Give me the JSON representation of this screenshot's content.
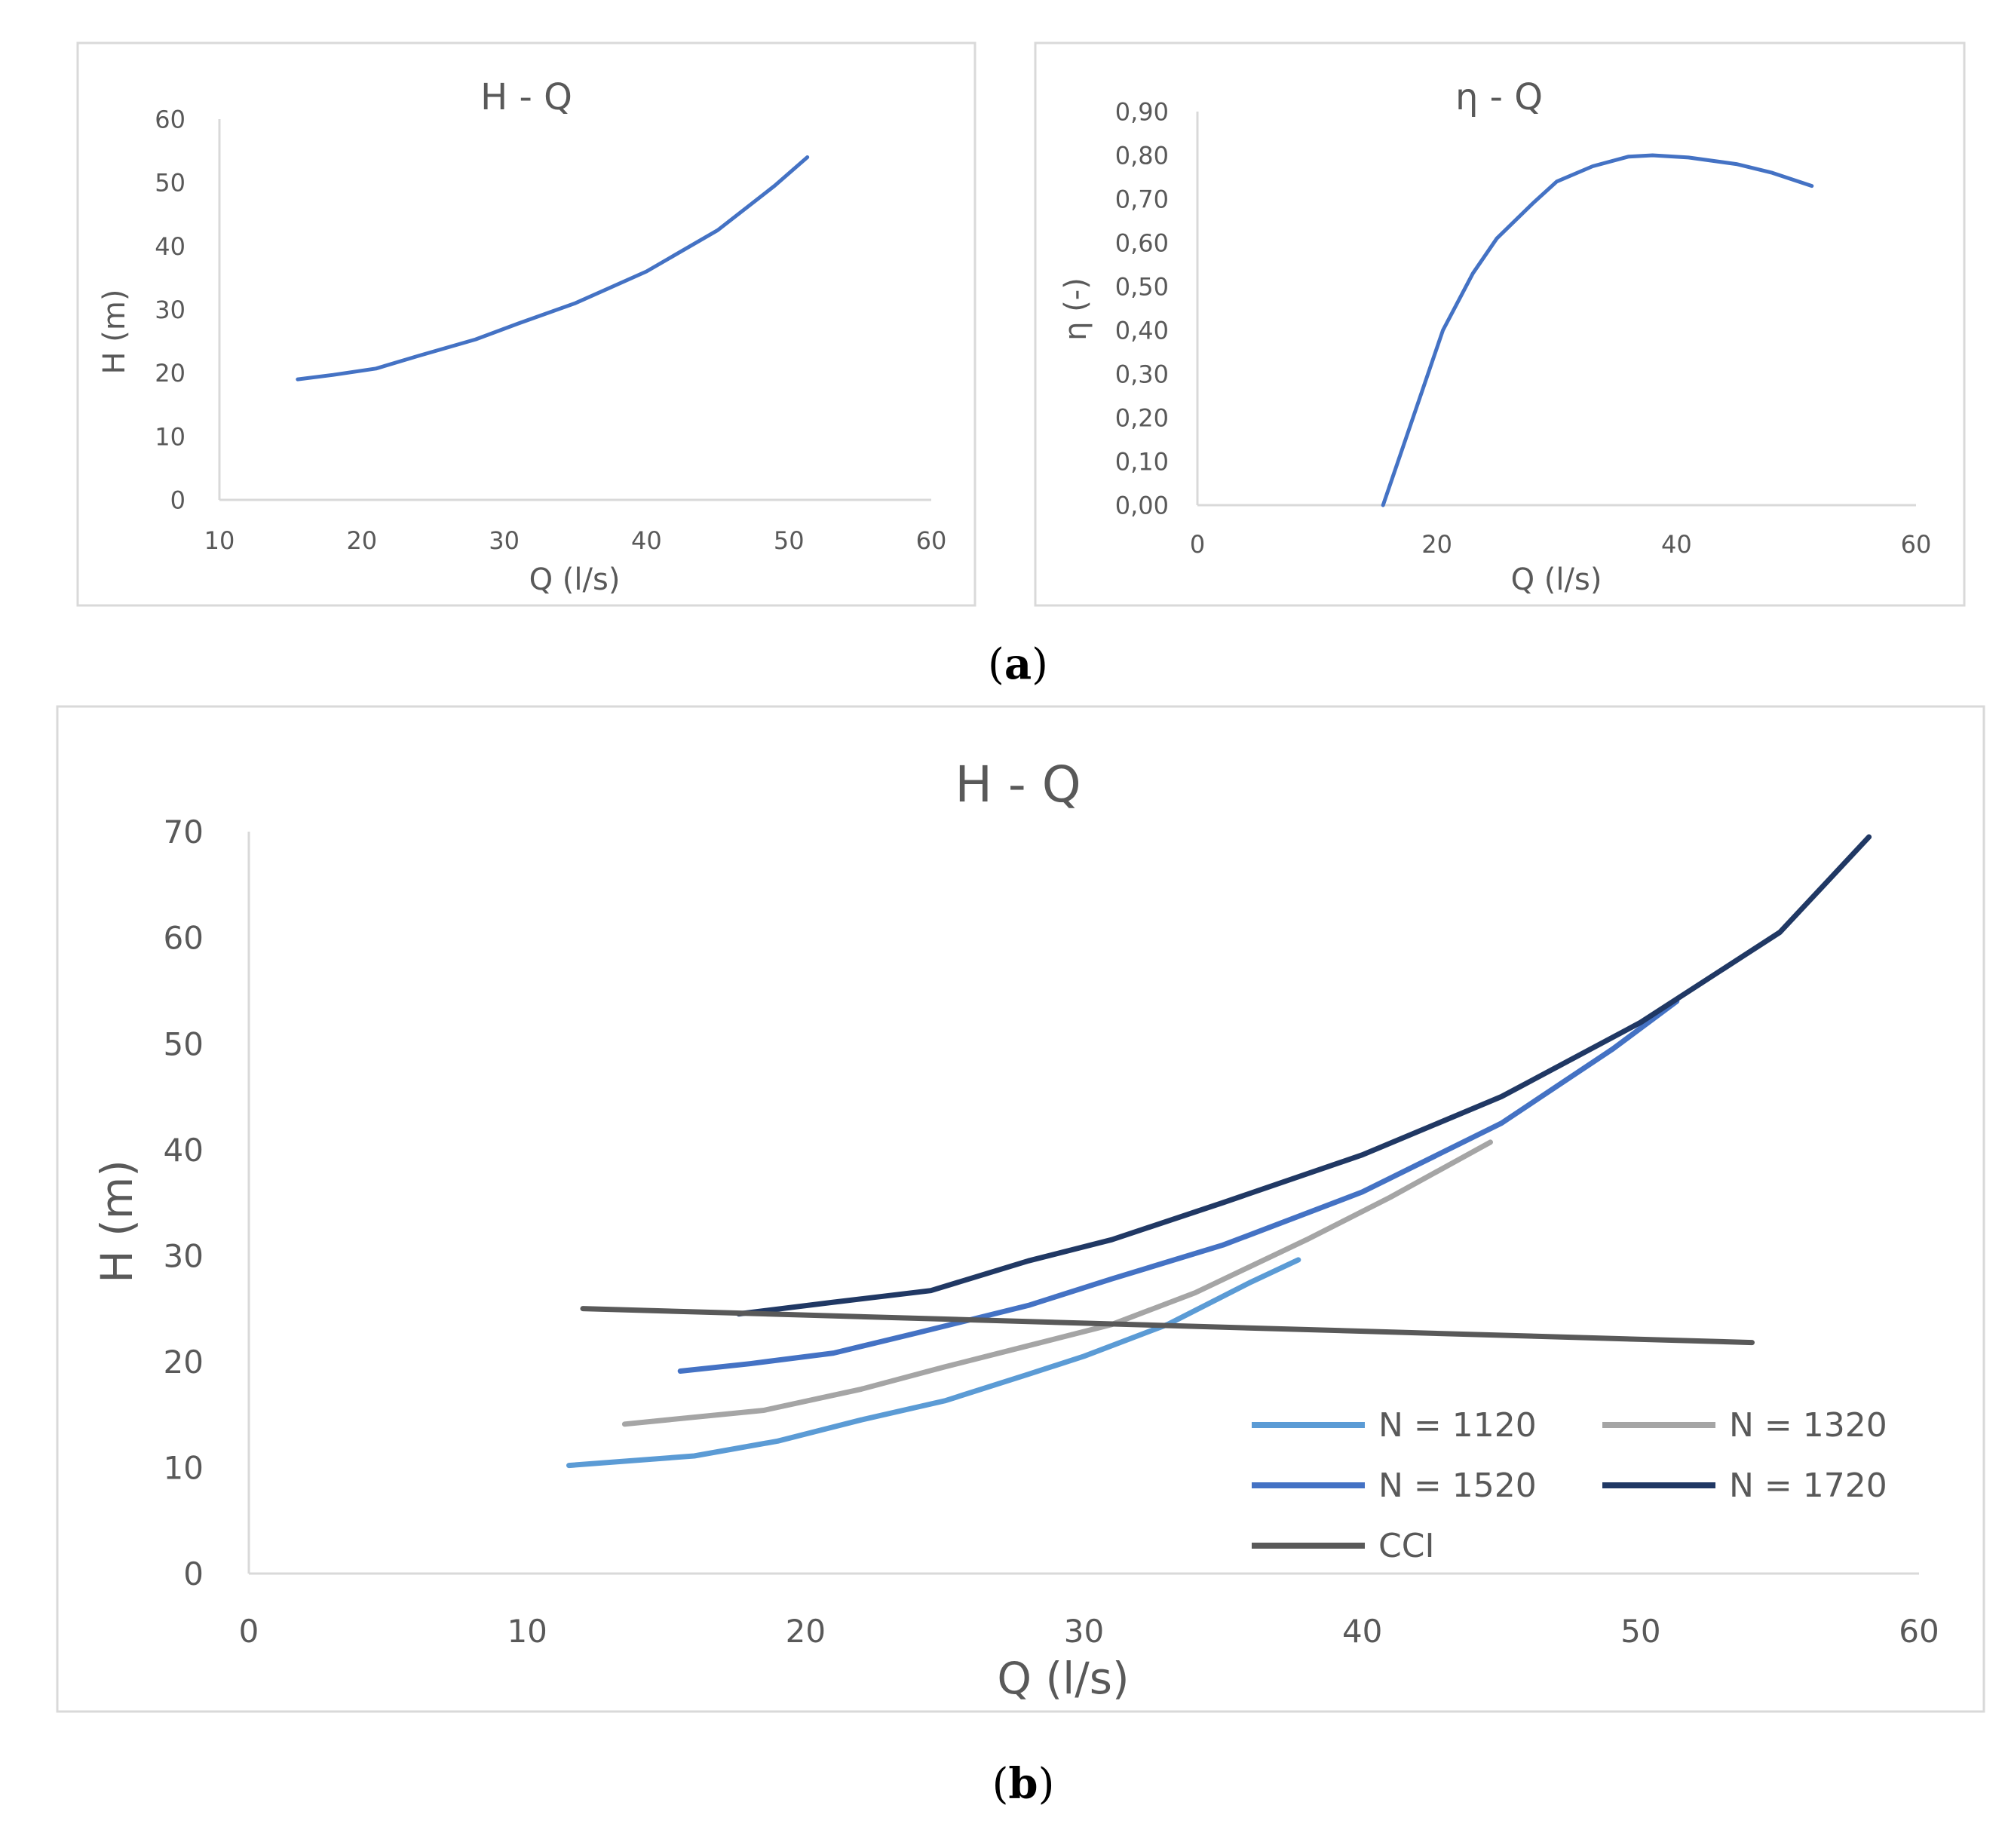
{
  "chart_data": [
    {
      "id": "a-left",
      "type": "line",
      "title": "H - Q",
      "xlabel": "Q (l/s)",
      "ylabel": "H (m)",
      "xlim": [
        10,
        60
      ],
      "ylim": [
        0,
        60
      ],
      "xticks": [
        "10",
        "20",
        "30",
        "40",
        "50",
        "60"
      ],
      "yticks": [
        "0",
        "10",
        "20",
        "30",
        "40",
        "50",
        "60"
      ],
      "series": [
        {
          "name": "H",
          "color": "#4472c4",
          "x": [
            15.5,
            18,
            21,
            24,
            28,
            31,
            35,
            40,
            45,
            49,
            51.3
          ],
          "y": [
            19,
            19.7,
            20.7,
            22.7,
            25.3,
            27.8,
            31,
            36,
            42.5,
            49.5,
            54
          ]
        }
      ]
    },
    {
      "id": "a-right",
      "type": "line",
      "title": "η - Q",
      "xlabel": "Q (l/s)",
      "ylabel": "η (-)",
      "xlim": [
        0,
        60
      ],
      "ylim": [
        0,
        0.9
      ],
      "xticks": [
        "0",
        "20",
        "40",
        "60"
      ],
      "yticks": [
        "0,00",
        "0,10",
        "0,20",
        "0,30",
        "0,40",
        "0,50",
        "0,60",
        "0,70",
        "0,80",
        "0,90"
      ],
      "series": [
        {
          "name": "η",
          "color": "#4472c4",
          "x": [
            15.5,
            18,
            20.5,
            23,
            25,
            28,
            30,
            33,
            36,
            38,
            41,
            45,
            48,
            51.3
          ],
          "y": [
            0.0,
            0.2,
            0.4,
            0.53,
            0.61,
            0.69,
            0.74,
            0.775,
            0.797,
            0.8,
            0.795,
            0.78,
            0.76,
            0.73
          ]
        }
      ]
    },
    {
      "id": "b",
      "type": "line",
      "title": "H - Q",
      "xlabel": "Q (l/s)",
      "ylabel": "H (m)",
      "xlim": [
        0,
        60
      ],
      "ylim": [
        0,
        70
      ],
      "xticks": [
        "0",
        "10",
        "20",
        "30",
        "40",
        "50",
        "60"
      ],
      "yticks": [
        "0",
        "10",
        "20",
        "30",
        "40",
        "50",
        "60",
        "70"
      ],
      "legend": "bottom-right",
      "series": [
        {
          "name": "N = 1120",
          "color": "#5b9bd5",
          "x": [
            11.5,
            16,
            19,
            22,
            25,
            28,
            30,
            33,
            36,
            37.7
          ],
          "y": [
            10.2,
            11.1,
            12.5,
            14.5,
            16.3,
            18.8,
            20.5,
            23.5,
            27.5,
            29.6
          ]
        },
        {
          "name": "N = 1320",
          "color": "#a5a5a5",
          "x": [
            13.5,
            18.5,
            22,
            25,
            28,
            31,
            34,
            38,
            41,
            44.6
          ],
          "y": [
            14.1,
            15.4,
            17.4,
            19.5,
            21.5,
            23.5,
            26.5,
            31.5,
            35.5,
            40.7
          ]
        },
        {
          "name": "N = 1520",
          "color": "#4472c4",
          "x": [
            15.5,
            18,
            21,
            24,
            28,
            31,
            35,
            40,
            45,
            49,
            51.3
          ],
          "y": [
            19.1,
            19.8,
            20.8,
            22.7,
            25.3,
            27.8,
            31,
            36,
            42.5,
            49.5,
            54
          ]
        },
        {
          "name": "N = 1720",
          "color": "#203864",
          "x": [
            17.6,
            21,
            24.5,
            28,
            31,
            35,
            40,
            45,
            50,
            55,
            58.2
          ],
          "y": [
            24.5,
            25.6,
            26.7,
            29.5,
            31.5,
            35,
            39.5,
            45,
            52,
            60.5,
            69.5
          ]
        },
        {
          "name": "CCI",
          "color": "#595959",
          "x": [
            12,
            54
          ],
          "y": [
            25,
            21.8
          ]
        }
      ]
    }
  ],
  "captions": {
    "a": "a",
    "b": "b"
  }
}
